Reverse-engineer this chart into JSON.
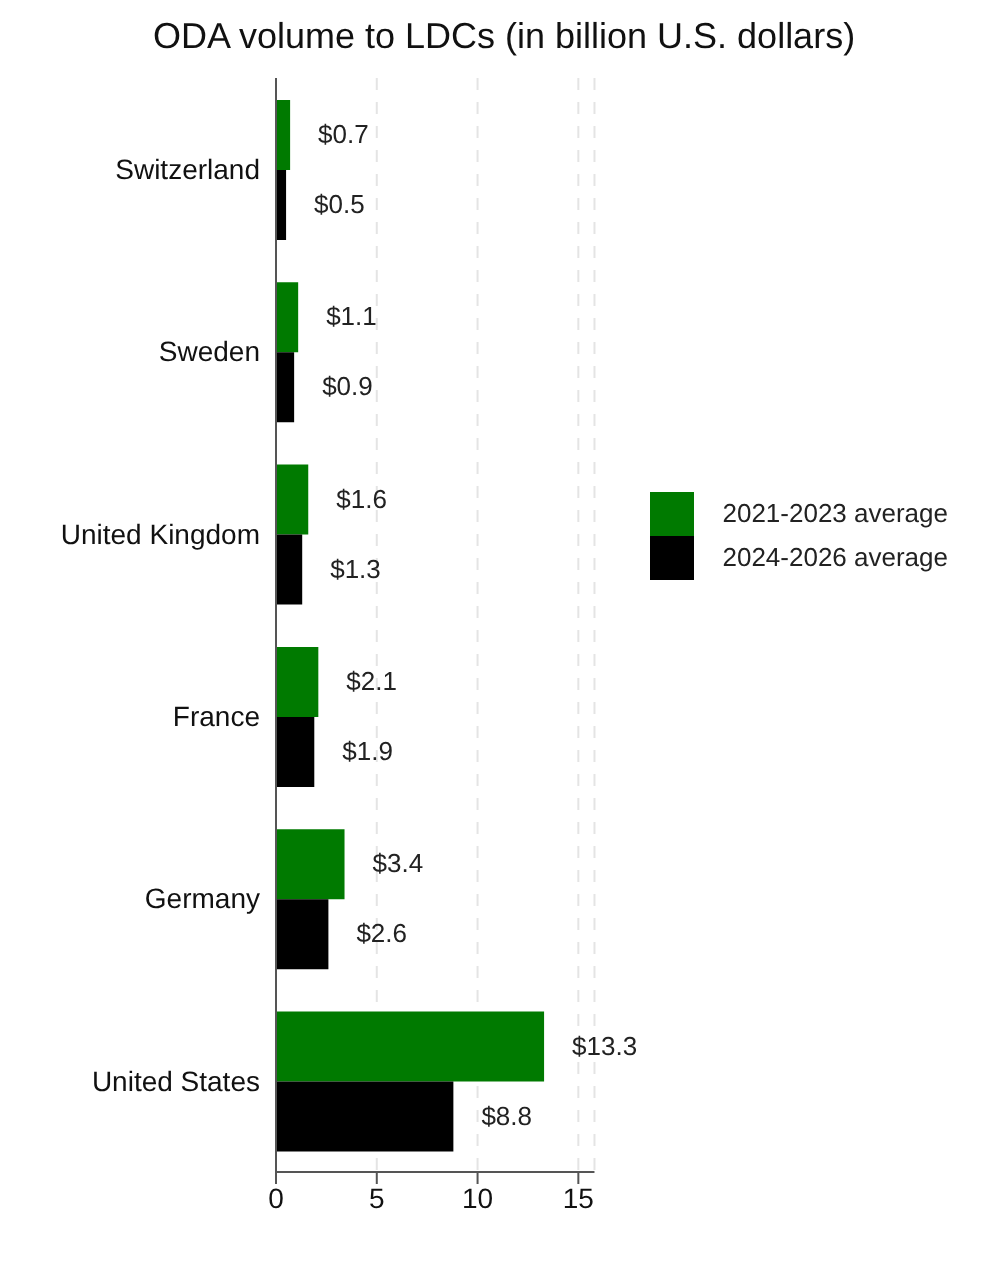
{
  "chart_data": {
    "type": "bar",
    "orientation": "horizontal",
    "title": "ODA volume to LDCs (in billion U.S. dollars)",
    "categories": [
      "Switzerland",
      "Sweden",
      "United Kingdom",
      "France",
      "Germany",
      "United States"
    ],
    "series": [
      {
        "name": "2021-2023 average",
        "color": "#007a00",
        "values": [
          0.7,
          1.1,
          1.6,
          2.1,
          3.4,
          13.3
        ],
        "value_labels": [
          "$0.7",
          "$1.1",
          "$1.6",
          "$2.1",
          "$3.4",
          "$13.3"
        ]
      },
      {
        "name": "2024-2026 average",
        "color": "#000000",
        "values": [
          0.5,
          0.9,
          1.3,
          1.9,
          2.6,
          8.8
        ],
        "value_labels": [
          "$0.5",
          "$0.9",
          "$1.3",
          "$1.9",
          "$2.6",
          "$8.8"
        ]
      }
    ],
    "xlim": [
      0,
      15.8
    ],
    "xticks": [
      0,
      5,
      10,
      15
    ],
    "grid": "x",
    "legend": "right"
  }
}
